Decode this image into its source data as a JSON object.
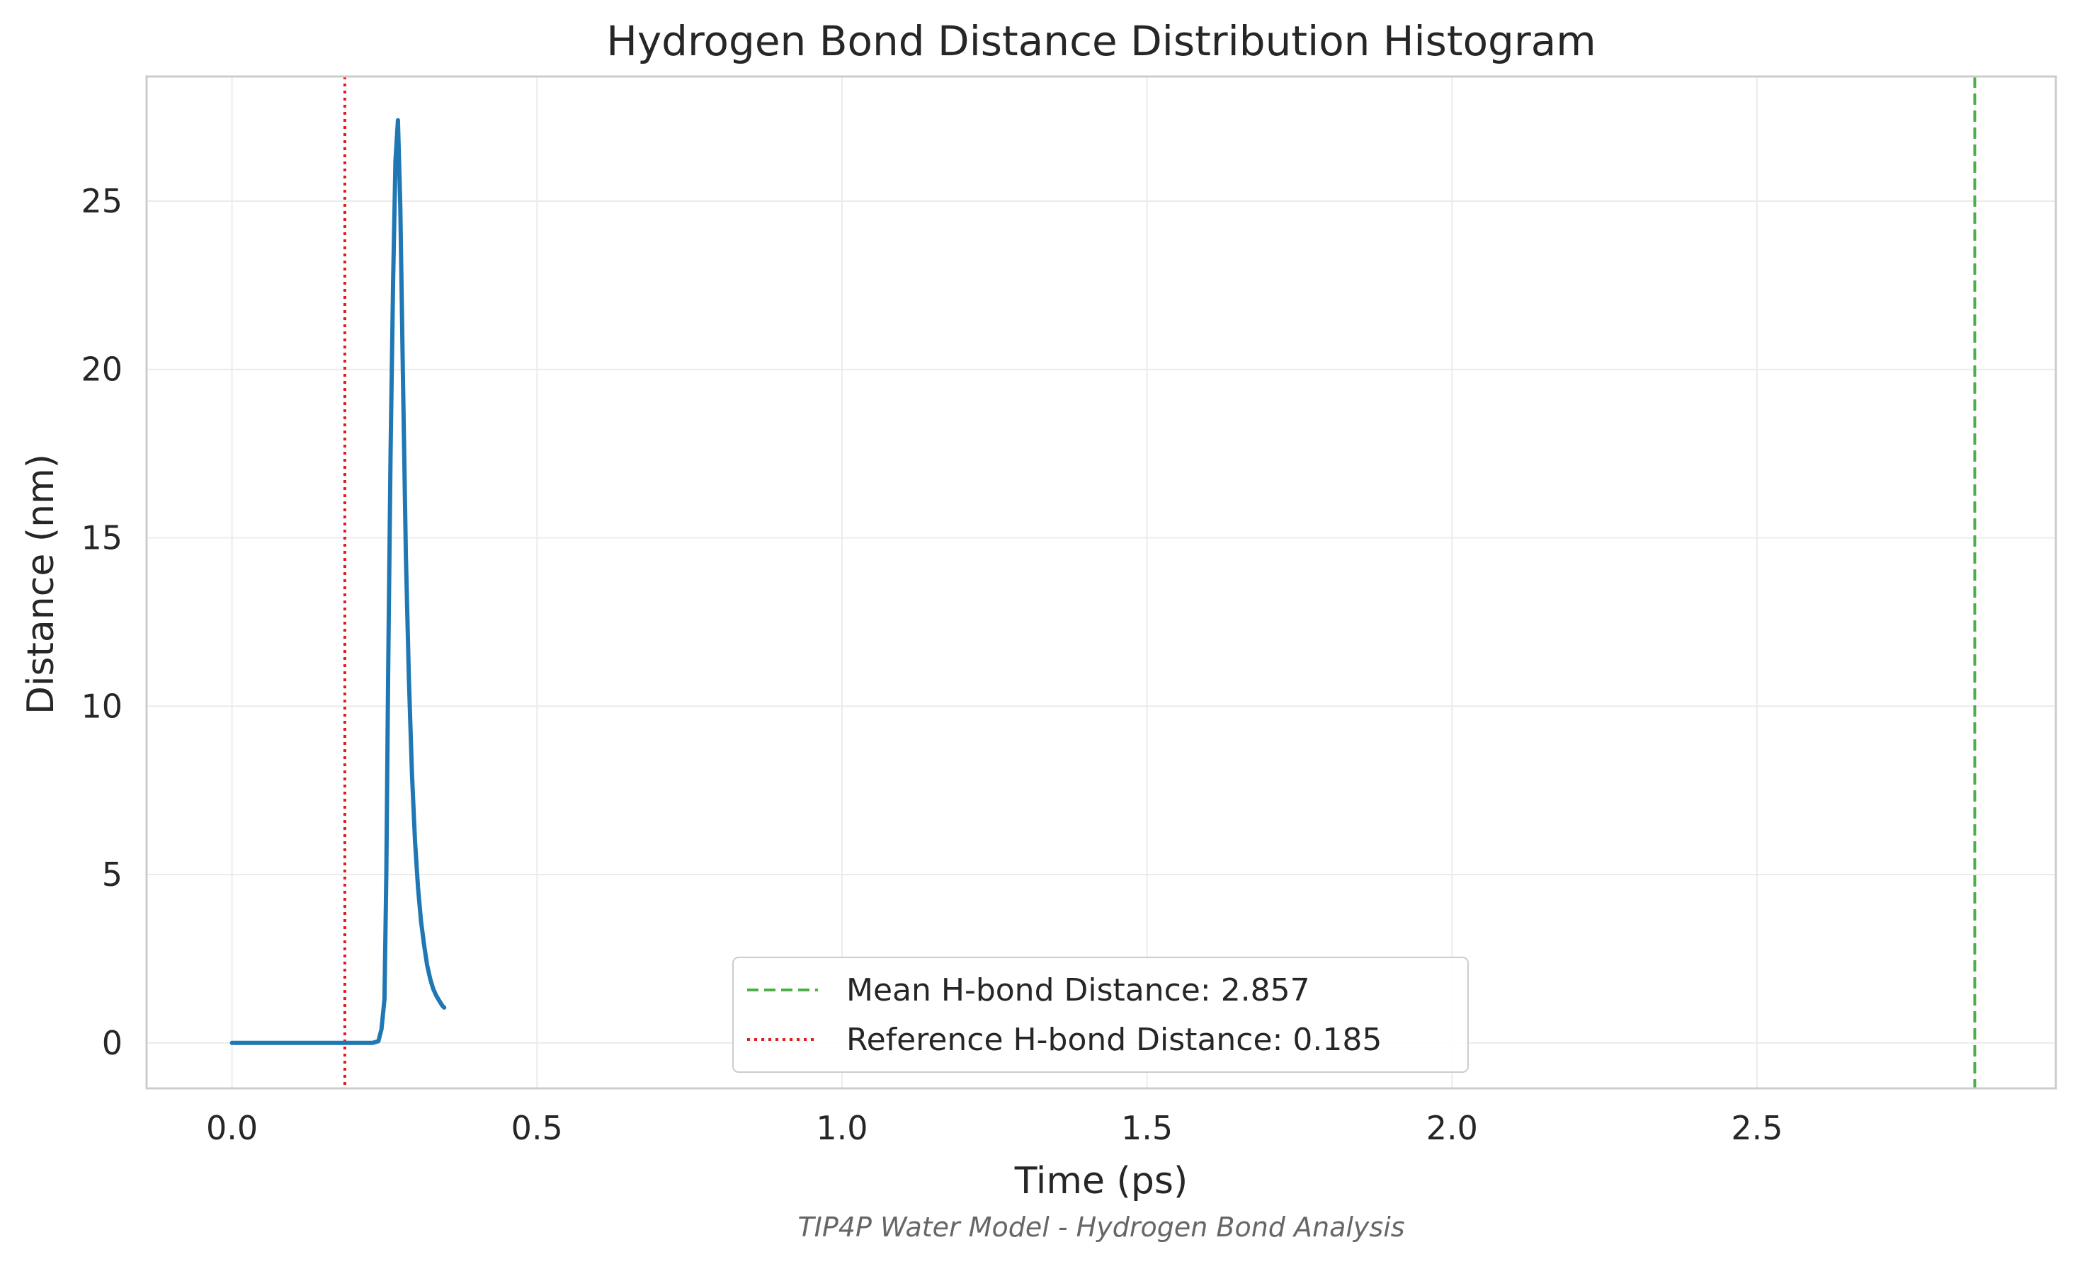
{
  "chart_data": {
    "type": "line",
    "title": "Hydrogen Bond Distance Distribution Histogram",
    "xlabel": "Time (ps)",
    "ylabel": "Distance (nm)",
    "caption": "TIP4P Water Model - Hydrogen Bond Analysis",
    "xlim": [
      -0.14,
      2.99
    ],
    "ylim": [
      -1.35,
      28.7
    ],
    "xticks": [
      0.0,
      0.5,
      1.0,
      1.5,
      2.0,
      2.5
    ],
    "xtick_labels": [
      "0.0",
      "0.5",
      "1.0",
      "1.5",
      "2.0",
      "2.5"
    ],
    "yticks": [
      0,
      5,
      10,
      15,
      20,
      25
    ],
    "ytick_labels": [
      "0",
      "5",
      "10",
      "15",
      "20",
      "25"
    ],
    "grid": true,
    "legend_position": "lower-center",
    "series": [
      {
        "color": "#1f77b4",
        "x": [
          0.0,
          0.05,
          0.1,
          0.15,
          0.2,
          0.23,
          0.24,
          0.245,
          0.25,
          0.253,
          0.256,
          0.26,
          0.264,
          0.268,
          0.272,
          0.276,
          0.28,
          0.285,
          0.29,
          0.295,
          0.3,
          0.305,
          0.31,
          0.315,
          0.32,
          0.325,
          0.33,
          0.335,
          0.34,
          0.345,
          0.348
        ],
        "y": [
          0,
          0,
          0,
          0,
          0,
          0,
          0.05,
          0.4,
          1.3,
          5.0,
          11.0,
          17.5,
          22.5,
          26.2,
          27.4,
          24.8,
          20.0,
          14.5,
          10.8,
          8.0,
          6.0,
          4.6,
          3.6,
          2.9,
          2.3,
          1.9,
          1.6,
          1.4,
          1.25,
          1.1,
          1.05
        ]
      }
    ],
    "reference_lines": [
      {
        "label": "Mean H-bond Distance: 2.857",
        "x": 2.857,
        "color": "#4daf4a",
        "style": "dashed"
      },
      {
        "label": "Reference H-bond Distance: 0.185",
        "x": 0.185,
        "color": "#e41a1c",
        "style": "dotted"
      }
    ]
  }
}
